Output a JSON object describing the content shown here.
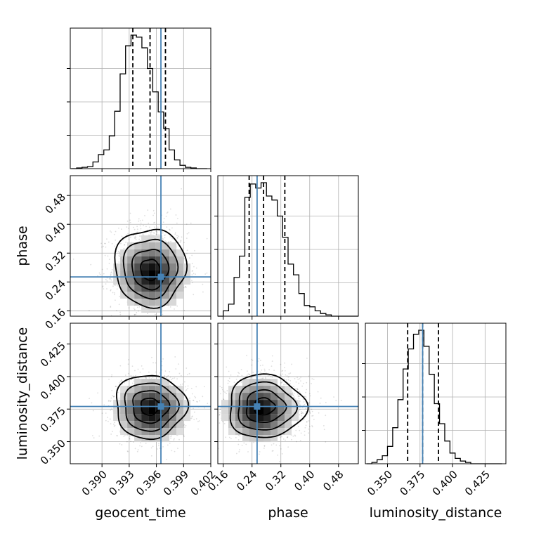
{
  "chart_data": {
    "type": "corner",
    "parameters": [
      "geocent_time",
      "phase",
      "luminosity_distance"
    ],
    "truth": {
      "geocent_time": 0.3965,
      "phase": 0.254,
      "luminosity_distance": 0.377
    },
    "truth_color": "#4682b4",
    "grid": true,
    "axes": {
      "geocent_time": {
        "range": [
          0.3865,
          0.402
        ],
        "ticks": [
          0.39,
          0.393,
          0.396,
          0.399,
          0.402
        ],
        "tick_labels": [
          "0.390",
          "0.393",
          "0.396",
          "0.399",
          "0.402"
        ],
        "label": "geocent_time"
      },
      "phase": {
        "range": [
          0.145,
          0.535
        ],
        "ticks": [
          0.16,
          0.24,
          0.32,
          0.4,
          0.48
        ],
        "tick_labels": [
          "0.16",
          "0.24",
          "0.32",
          "0.40",
          "0.48"
        ],
        "label": "phase"
      },
      "luminosity_distance": {
        "range": [
          0.333,
          0.441
        ],
        "ticks": [
          0.35,
          0.375,
          0.4,
          0.425
        ],
        "tick_labels": [
          "0.350",
          "0.375",
          "0.400",
          "0.425"
        ],
        "label": "luminosity_distance"
      }
    },
    "marginals": [
      {
        "parameter": "geocent_time",
        "bin_edges": [
          0.3866,
          0.3872,
          0.3878,
          0.3884,
          0.389,
          0.3896,
          0.3902,
          0.3908,
          0.3914,
          0.392,
          0.3926,
          0.3932,
          0.3938,
          0.3944,
          0.395,
          0.3956,
          0.3962,
          0.3968,
          0.3974,
          0.398,
          0.3986,
          0.3992,
          0.3998,
          0.4004,
          0.401,
          0.4016
        ],
        "counts": [
          0,
          0.5,
          1,
          1.5,
          5,
          10.5,
          14,
          24.5,
          43,
          71,
          92,
          100,
          98.5,
          90.5,
          75,
          57.5,
          42.5,
          30,
          14,
          6.5,
          2.5,
          1,
          0.5,
          0,
          0
        ],
        "quantiles": [
          0.3934,
          0.3953,
          0.397
        ]
      },
      {
        "parameter": "phase",
        "bin_edges": [
          0.145,
          0.16,
          0.175,
          0.19,
          0.205,
          0.22,
          0.235,
          0.25,
          0.265,
          0.28,
          0.295,
          0.31,
          0.325,
          0.34,
          0.355,
          0.37,
          0.385,
          0.4,
          0.415,
          0.43,
          0.445,
          0.46,
          0.475,
          0.49,
          0.505,
          0.52,
          0.535
        ],
        "counts": [
          0,
          4,
          9,
          29,
          45,
          89,
          99,
          96,
          100,
          90,
          87,
          75,
          59,
          39,
          31,
          17,
          8,
          7,
          4,
          2,
          1,
          0,
          0,
          0,
          0,
          0
        ],
        "quantiles": [
          0.232,
          0.272,
          0.331
        ]
      },
      {
        "parameter": "luminosity_distance",
        "bin_edges": [
          0.334,
          0.338,
          0.342,
          0.346,
          0.35,
          0.354,
          0.358,
          0.362,
          0.366,
          0.37,
          0.374,
          0.378,
          0.382,
          0.386,
          0.39,
          0.394,
          0.398,
          0.402,
          0.406,
          0.41,
          0.414,
          0.418,
          0.422,
          0.426,
          0.43,
          0.434,
          0.438
        ],
        "counts": [
          0,
          1,
          3,
          6,
          13,
          27,
          48,
          71,
          86,
          97,
          100,
          88,
          67,
          45,
          30,
          17,
          8,
          4,
          2,
          1,
          0,
          0,
          0,
          0,
          0,
          0
        ],
        "quantiles": [
          0.3655,
          0.377,
          0.3892
        ]
      }
    ],
    "joint": [
      {
        "x": "geocent_time",
        "y": "phase",
        "center": [
          0.3953,
          0.272
        ],
        "sigma": [
          0.0019,
          0.048
        ],
        "density_peak": [
          0.3955,
          0.262
        ]
      },
      {
        "x": "geocent_time",
        "y": "luminosity_distance",
        "center": [
          0.3953,
          0.377
        ],
        "sigma": [
          0.0019,
          0.0119
        ],
        "density_peak": [
          0.3955,
          0.374
        ]
      },
      {
        "x": "phase",
        "y": "luminosity_distance",
        "center": [
          0.272,
          0.377
        ],
        "sigma": [
          0.048,
          0.0119
        ],
        "density_peak": [
          0.262,
          0.374
        ]
      }
    ]
  }
}
